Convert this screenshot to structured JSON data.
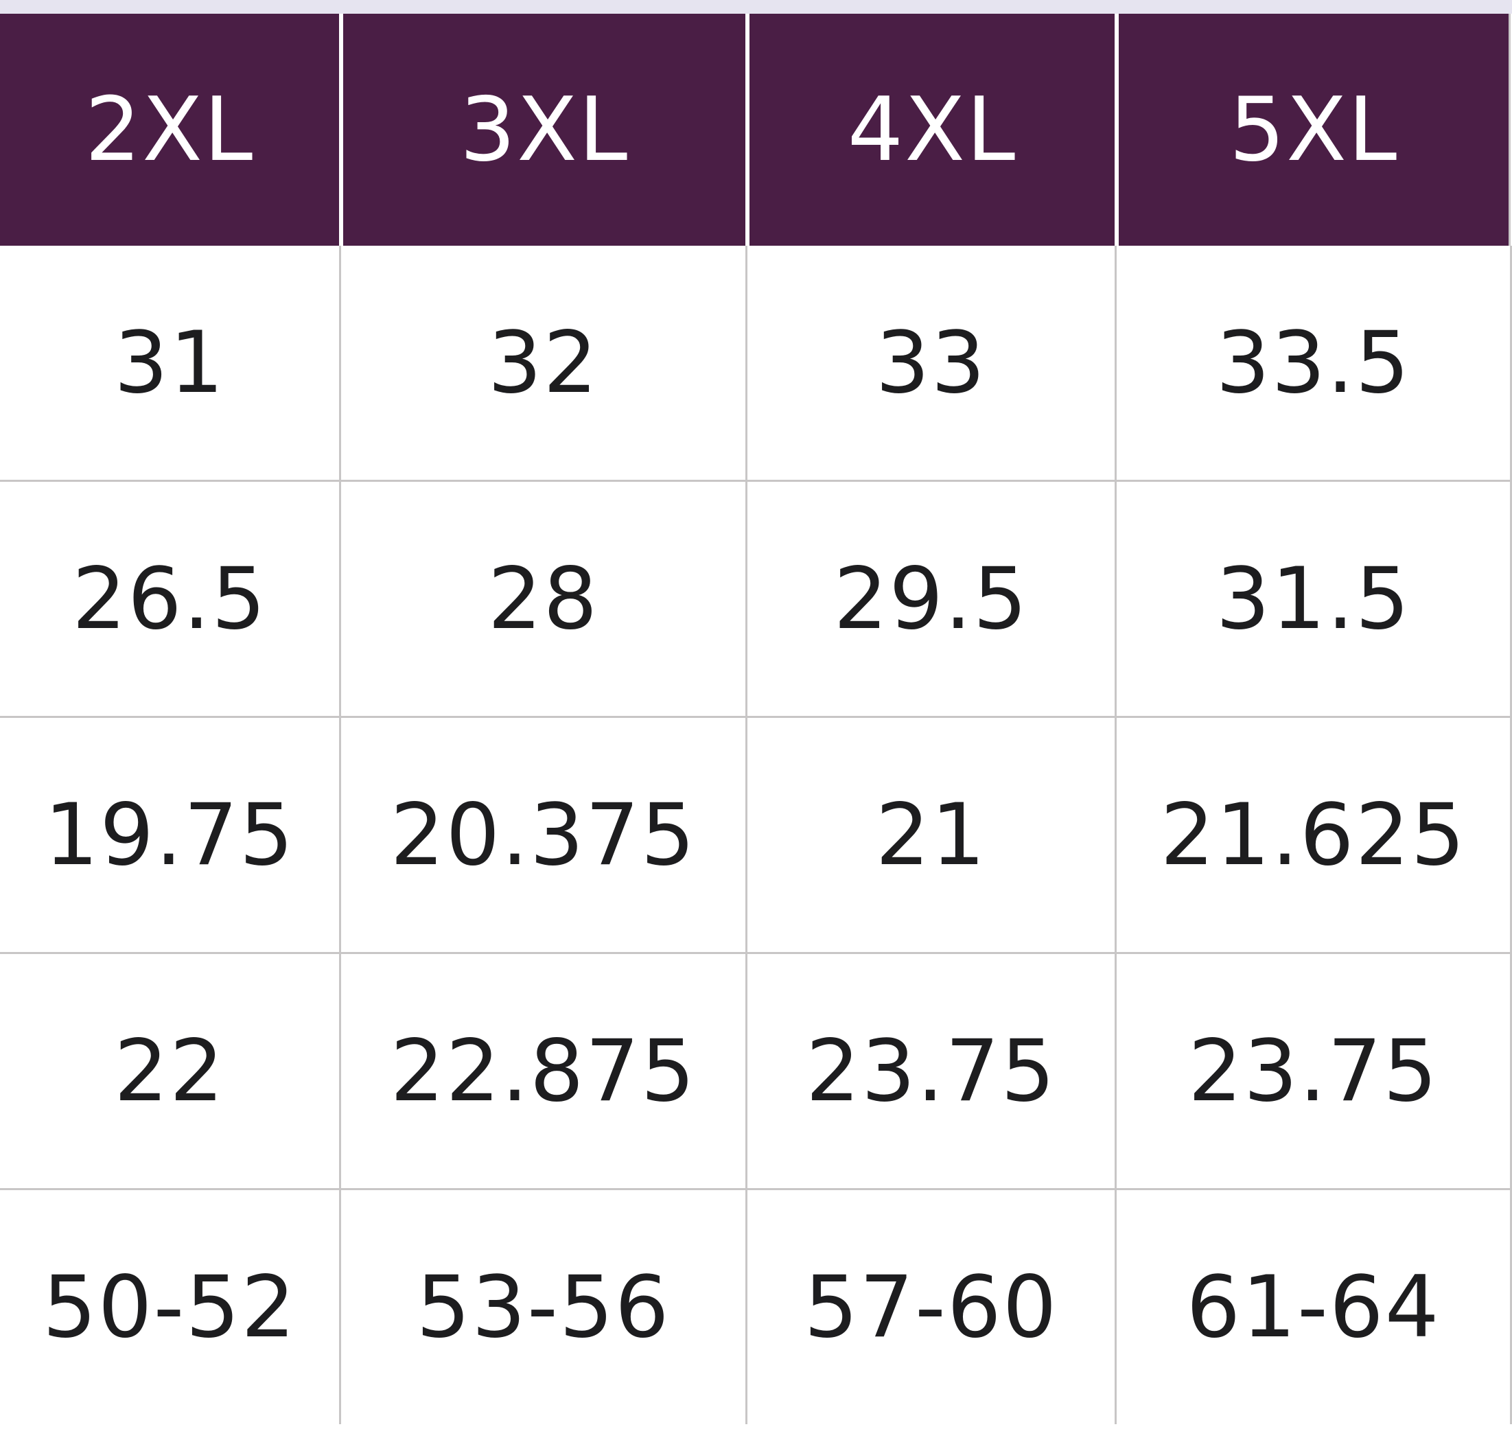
{
  "colors": {
    "header_background": "#4a1e45",
    "header_text": "#ffffff",
    "cell_text": "#1d1d1f",
    "grid_line": "#c8c6c6"
  },
  "table": {
    "headers": [
      "2XL",
      "3XL",
      "4XL",
      "5XL"
    ],
    "rows": [
      [
        "31",
        "32",
        "33",
        "33.5"
      ],
      [
        "26.5",
        "28",
        "29.5",
        "31.5"
      ],
      [
        "19.75",
        "20.375",
        "21",
        "21.625"
      ],
      [
        "22",
        "22.875",
        "23.75",
        "23.75"
      ],
      [
        "50-52",
        "53-56",
        "57-60",
        "61-64"
      ]
    ]
  }
}
